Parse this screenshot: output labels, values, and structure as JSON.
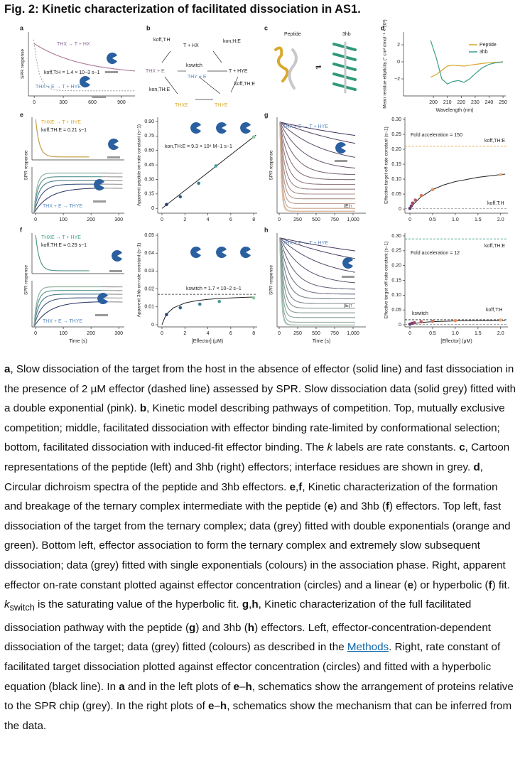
{
  "title": "Fig. 2: Kinetic characterization of facilitated dissociation in AS1.",
  "figure": {
    "panels": {
      "a": {
        "letter": "a",
        "xlim": [
          -60,
          1040
        ],
        "xticks": [
          0,
          300,
          600,
          900
        ],
        "ylabel": "SPR response",
        "annotations": [
          "THX → T + HX",
          "koff,T:H = 1.4 × 10−3 s−1",
          "THX + E → T + HYE"
        ]
      },
      "b": {
        "letter": "b",
        "labels": [
          "koff,T:H",
          "T + HX",
          "kon,H:E",
          "THX + E",
          "kswitch",
          "THY + E",
          "T + HYE",
          "kon,TH:E",
          "koff,TH:E",
          "THXE",
          "THYE"
        ]
      },
      "c": {
        "letter": "c",
        "labels": [
          "Peptide",
          "3hb"
        ]
      },
      "d": {
        "type": "line",
        "letter": "d",
        "xlim": [
          178.5,
          252
        ],
        "ylim": [
          -4,
          3.5
        ],
        "xticks": [
          200,
          210,
          220,
          230,
          240,
          250
        ],
        "yticks": [
          {
            "value": -2,
            "label": "−2"
          },
          0,
          2
        ],
        "xlabel": "Wavelength (nm)",
        "ylabel": "Mean residue ellipticity (° cm² dmol⁻¹ × 10³)",
        "x": [
          198,
          202,
          206,
          210,
          214,
          218,
          222,
          226,
          230,
          235,
          240,
          245,
          250
        ],
        "series": [
          {
            "name": "Peptide",
            "color": "#d9a82b",
            "values": [
              -1.8,
              -1.5,
              -1.0,
              -0.5,
              -0.4,
              -0.45,
              -0.5,
              -0.4,
              -0.3,
              -0.2,
              -0.1,
              -0.05,
              0
            ]
          },
          {
            "name": "3hb",
            "color": "#3a9e8a",
            "values": [
              2.5,
              0.5,
              -2.0,
              -2.6,
              -2.3,
              -2.2,
              -2.4,
              -2.0,
              -1.4,
              -0.7,
              -0.3,
              -0.1,
              0
            ]
          }
        ]
      },
      "e_left": {
        "letter": "e",
        "xlim": [
          -13,
          320
        ],
        "xticks": [
          0,
          100,
          200,
          300
        ],
        "ylabel": "SPR response",
        "annotations": [
          "THXE → T + HYE",
          "koff,TH:E = 0.21 s−1",
          "THX + E → THYE"
        ]
      },
      "e_right": {
        "type": "scatter",
        "xlim": [
          -0.37,
          8.3
        ],
        "ylim": [
          -0.05,
          0.944
        ],
        "xticks": [
          0,
          2,
          4,
          6,
          8
        ],
        "yticks": [
          0,
          0.15,
          {
            "value": 0.3,
            "label": "0.30"
          },
          0.45,
          {
            "value": 0.6,
            "label": "0.60"
          },
          0.75,
          {
            "value": 0.9,
            "label": "0.90"
          }
        ],
        "ylabel": "Apparent peptide on-rate constant (s−1)",
        "annotations": [
          "kon,TH:E = 9.3 × 10⁴ M−1 s−1"
        ],
        "points": {
          "x": [
            0.4,
            1.6,
            3.2,
            4.7,
            8
          ],
          "values": [
            0.04,
            0.12,
            0.26,
            0.44,
            0.74
          ],
          "colors": [
            "#2b3e7a",
            "#2d5e8a",
            "#3a7d93",
            "#4a9e9a",
            "#8fc7a6"
          ]
        },
        "fit": {
          "x": [
            0,
            8.2
          ],
          "values": [
            0,
            0.76
          ]
        }
      },
      "g_left": {
        "letter": "g",
        "xlim": [
          -29,
          1173
        ],
        "xticks": [
          0,
          250,
          500,
          750,
          {
            "value": 1000,
            "label": "1,000"
          }
        ],
        "ylabel": "SPR response",
        "annotations": [
          "THX + E → T + HYE",
          "[E]↑"
        ]
      },
      "g_right": {
        "type": "scatter",
        "xlim": [
          -0.11,
          2.16
        ],
        "ylim": [
          -0.014,
          0.307
        ],
        "xticks": [
          0,
          0.5,
          {
            "value": 1,
            "label": "1.0"
          },
          1.5,
          {
            "value": 2,
            "label": "2.0"
          }
        ],
        "yticks": [
          0,
          0.05,
          {
            "value": 0.1,
            "label": "0.10"
          },
          0.15,
          {
            "value": 0.2,
            "label": "0.20"
          },
          0.25,
          {
            "value": 0.3,
            "label": "0.30"
          }
        ],
        "ylabel": "Effective target off-rate constant (s−1)",
        "annotations": [
          "Fold acceleration = 150",
          "koff,TH:E",
          "koff,T:H"
        ],
        "hlines": [
          {
            "value": 0.21,
            "color": "#e8a040"
          },
          {
            "value": 0.0014,
            "color": "#999999"
          }
        ],
        "points": {
          "x": [
            0,
            0.03,
            0.06,
            0.12,
            0.25,
            0.5,
            2
          ],
          "values": [
            0.002,
            0.01,
            0.02,
            0.03,
            0.045,
            0.065,
            0.115
          ],
          "colors": [
            "#5a3a6e",
            "#7c3f6e",
            "#a04a6b",
            "#c05a62",
            "#d6745a",
            "#e89160",
            "#f0b07a"
          ]
        },
        "fit": {
          "x": [
            0,
            0.1,
            0.25,
            0.5,
            0.75,
            1,
            1.5,
            2,
            2.1
          ],
          "values": [
            0,
            0.0196,
            0.0412,
            0.0651,
            0.0808,
            0.0917,
            0.1062,
            0.1153,
            0.1167
          ]
        }
      },
      "f_left": {
        "letter": "f",
        "xlim": [
          -13,
          320
        ],
        "xticks": [
          0,
          100,
          200,
          300
        ],
        "xlabel": "Time (s)",
        "ylabel": "SPR response",
        "annotations": [
          "THXE → T + HYE",
          "koff,TH:E = 0.29 s−1",
          "THX + E → THYE"
        ]
      },
      "f_right": {
        "type": "scatter",
        "xlim": [
          -0.37,
          8.3
        ],
        "ylim": [
          -0.0012,
          0.0512
        ],
        "xticks": [
          0,
          2,
          4,
          6,
          8
        ],
        "yticks": [
          0,
          0.01,
          0.02,
          0.03,
          0.04,
          0.05
        ],
        "xlabel": "[Effector] (μM)",
        "ylabel": "Apparent 3hb on-rate constant (s−1)",
        "annotations": [
          "kswitch = 1.7 × 10−2 s−1"
        ],
        "hlines": [
          {
            "value": 0.017,
            "color": "#222222"
          }
        ],
        "points": {
          "x": [
            0.4,
            1.6,
            3.3,
            5,
            8
          ],
          "values": [
            0.0057,
            0.0095,
            0.0115,
            0.013,
            0.015
          ],
          "colors": [
            "#2b3e7a",
            "#2d5e8a",
            "#3a7d93",
            "#4a9e9a",
            "#8fc7a6"
          ]
        },
        "fit": {
          "x": [
            0,
            0.25,
            0.5,
            1,
            2,
            3,
            4,
            5,
            6,
            7,
            8
          ],
          "values": [
            0,
            0.00405,
            0.00654,
            0.00944,
            0.01214,
            0.01342,
            0.01417,
            0.01466,
            0.015,
            0.01526,
            0.01545
          ]
        }
      },
      "h_left": {
        "letter": "h",
        "xlim": [
          -29,
          1173
        ],
        "xticks": [
          0,
          250,
          500,
          750,
          {
            "value": 1000,
            "label": "1,000"
          }
        ],
        "xlabel": "Time (s)",
        "ylabel": "SPR response",
        "annotations": [
          "THX + E → T + HYE",
          "[E]↑"
        ]
      },
      "h_right": {
        "type": "scatter",
        "xlim": [
          -0.11,
          2.16
        ],
        "ylim": [
          -0.0072,
          0.3096
        ],
        "xticks": [
          0,
          0.5,
          {
            "value": 1,
            "label": "1.0"
          },
          1.5,
          {
            "value": 2,
            "label": "2.0"
          }
        ],
        "yticks": [
          0,
          0.05,
          {
            "value": 0.1,
            "label": "0.10"
          },
          0.15,
          {
            "value": 0.2,
            "label": "0.20"
          },
          0.25,
          {
            "value": 0.3,
            "label": "0.30"
          }
        ],
        "xlabel": "[Effector] (μM)",
        "ylabel": "Effective target off-rate constant (s−1)",
        "annotations": [
          "Fold acceleration = 12",
          "koff,TH:E",
          "kswitch",
          "koff,T:H"
        ],
        "hlines": [
          {
            "value": 0.29,
            "color": "#3a9e8a"
          },
          {
            "value": 0.017,
            "color": "#222222"
          },
          {
            "value": 0.0014,
            "color": "#999999"
          }
        ],
        "points": {
          "x": [
            0,
            0.05,
            0.1,
            0.25,
            0.5,
            1,
            2
          ],
          "values": [
            0.002,
            0.005,
            0.007,
            0.01,
            0.012,
            0.014,
            0.016
          ],
          "colors": [
            "#5a3a6e",
            "#7c3f6e",
            "#a04a6b",
            "#c05a62",
            "#d6745a",
            "#e89160",
            "#f0b07a"
          ]
        },
        "fit": {
          "x": [
            0,
            0.1,
            0.25,
            0.5,
            1,
            1.5,
            2,
            2.1
          ],
          "values": [
            0,
            0.00425,
            0.00773,
            0.01063,
            0.01308,
            0.01417,
            0.01478,
            0.01488
          ]
        }
      }
    }
  },
  "caption": [
    {
      "text": "a",
      "style": "b"
    },
    {
      "text": ", Slow dissociation of the target from the host in the absence of effector (solid line) and fast dissociation in the presence of 2 µM effector (dashed line) assessed by SPR. Slow dissociation data (solid grey) fitted with a double exponential (pink). "
    },
    {
      "text": "b",
      "style": "b"
    },
    {
      "text": ", Kinetic model describing pathways of competition. Top, mutually exclusive competition; middle, facilitated dissociation with effector binding rate-limited by conformational selection; bottom, facilitated dissociation with induced-fit effector binding. The "
    },
    {
      "text": "k",
      "style": "i"
    },
    {
      "text": " labels are rate constants. "
    },
    {
      "text": "c",
      "style": "b"
    },
    {
      "text": ", Cartoon representations of the peptide (left) and 3hb (right) effectors; interface residues are shown in grey. "
    },
    {
      "text": "d",
      "style": "b"
    },
    {
      "text": ", Circular dichroism spectra of the peptide and 3hb effectors. "
    },
    {
      "text": "e",
      "style": "b"
    },
    {
      "text": ","
    },
    {
      "text": "f",
      "style": "b"
    },
    {
      "text": ", Kinetic characterization of the formation and breakage of the ternary complex intermediate with the peptide ("
    },
    {
      "text": "e",
      "style": "b"
    },
    {
      "text": ") and 3hb ("
    },
    {
      "text": "f",
      "style": "b"
    },
    {
      "text": ") effectors. Top left, fast dissociation of the target from the ternary complex; data (grey) fitted with double exponentials (orange and green). Bottom left, effector association to form the ternary complex and extremely slow subsequent dissociation; data (grey) fitted with single exponentials (colours) in the association phase. Right, apparent effector on-rate constant plotted against effector concentration (circles) and a linear ("
    },
    {
      "text": "e",
      "style": "b"
    },
    {
      "text": ") or hyperbolic ("
    },
    {
      "text": "f",
      "style": "b"
    },
    {
      "text": ") fit. "
    },
    {
      "text": "k",
      "style": "i"
    },
    {
      "text": "switch",
      "style": "sub"
    },
    {
      "text": " is the saturating value of the hyperbolic fit. "
    },
    {
      "text": "g",
      "style": "b"
    },
    {
      "text": ","
    },
    {
      "text": "h",
      "style": "b"
    },
    {
      "text": ", Kinetic characterization of the full facilitated dissociation pathway with the peptide ("
    },
    {
      "text": "g",
      "style": "b"
    },
    {
      "text": ") and 3hb ("
    },
    {
      "text": "h",
      "style": "b"
    },
    {
      "text": ") effectors. Left, effector-concentration-dependent dissociation of the target; data (grey) fitted (colours) as described in the "
    },
    {
      "text": "Methods",
      "style": "link"
    },
    {
      "text": ". Right, rate constant of facilitated target dissociation plotted against effector concentration (circles) and fitted with a hyperbolic equation (black line). In "
    },
    {
      "text": "a",
      "style": "b"
    },
    {
      "text": " and in the left plots of "
    },
    {
      "text": "e",
      "style": "b"
    },
    {
      "text": "–"
    },
    {
      "text": "h",
      "style": "b"
    },
    {
      "text": ", schematics show the arrangement of proteins relative to the SPR chip (grey). In the right plots of "
    },
    {
      "text": "e",
      "style": "b"
    },
    {
      "text": "–"
    },
    {
      "text": "h",
      "style": "b"
    },
    {
      "text": ", schematics show the mechanism that can be inferred from the data."
    }
  ]
}
